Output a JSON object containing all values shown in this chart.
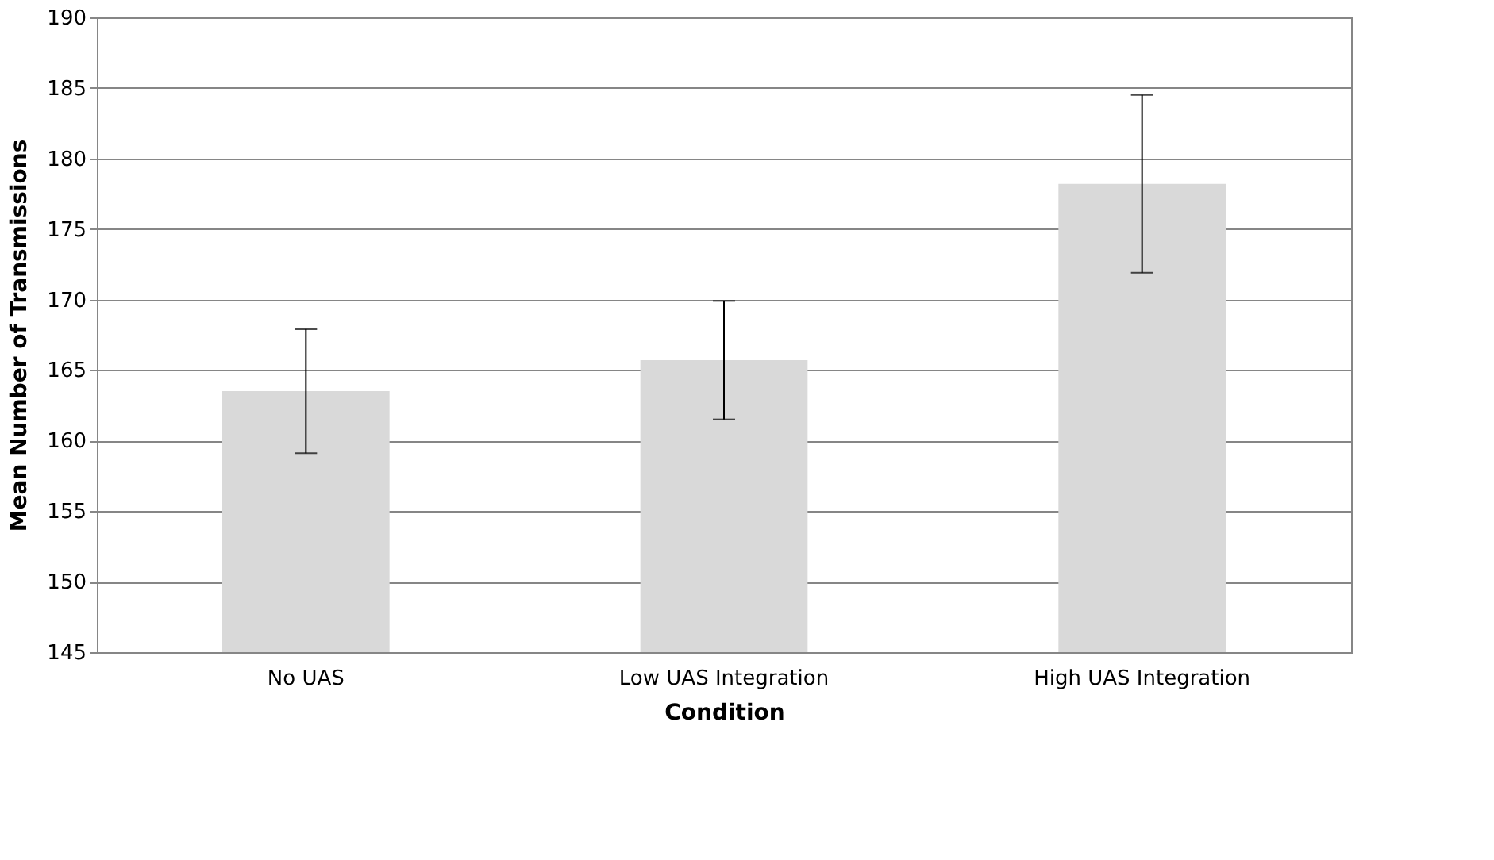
{
  "chart_data": {
    "type": "bar",
    "xlabel": "Condition",
    "ylabel": "Mean Number of Transmissions",
    "categories": [
      "No UAS",
      "Low UAS Integration",
      "High UAS Integration"
    ],
    "values": [
      163.5,
      165.7,
      178.2
    ],
    "errors": [
      4.4,
      4.2,
      6.3
    ],
    "color": "#d9d9d9",
    "ylim": [
      145,
      190
    ],
    "yticks": [
      145,
      150,
      155,
      160,
      165,
      170,
      175,
      180,
      185,
      190
    ],
    "grid": "y"
  }
}
